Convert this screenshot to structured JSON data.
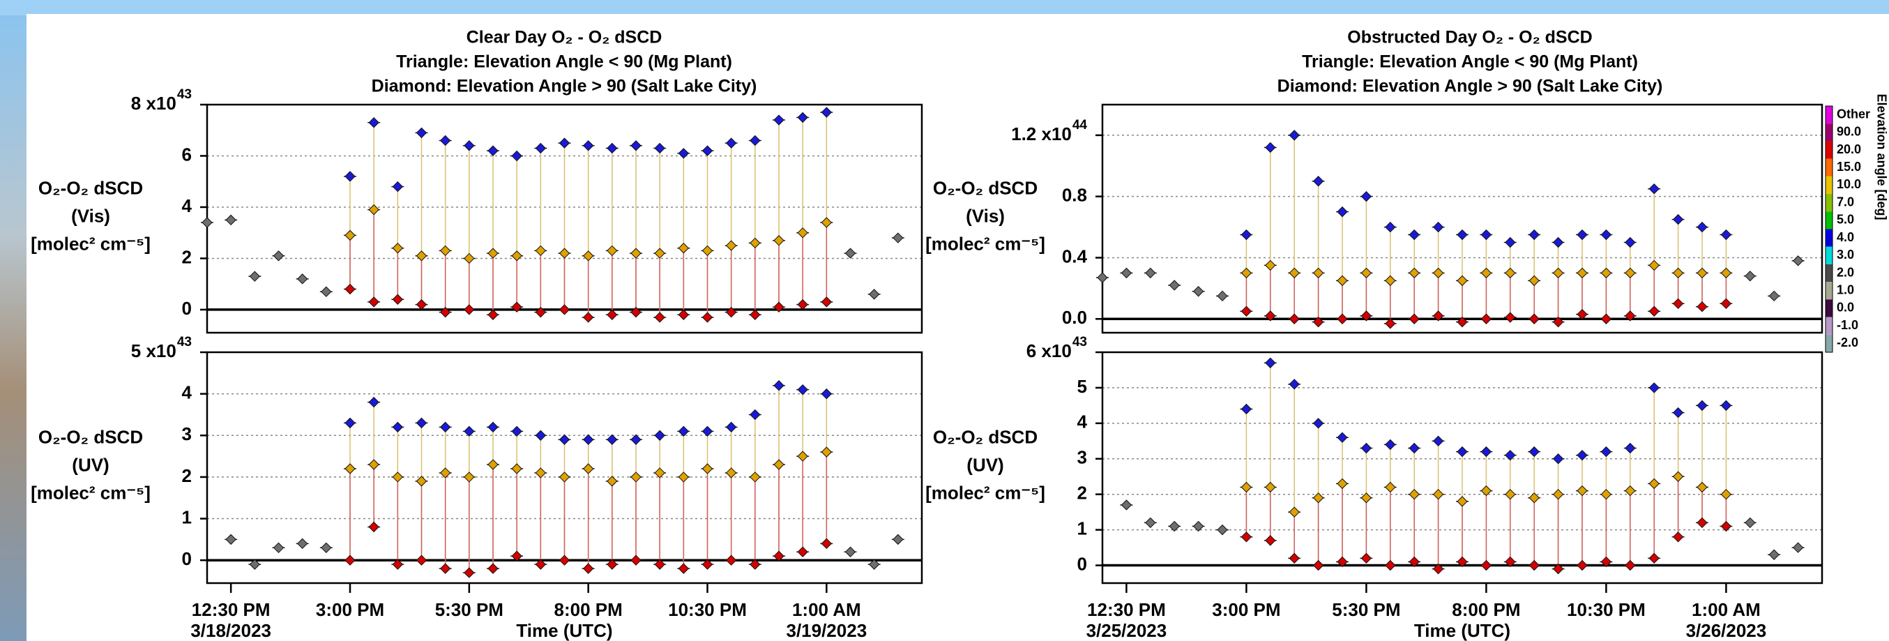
{
  "chart_data": [
    {
      "type": "scatter",
      "title": [
        "Clear Day O₂ - O₂ dSCD",
        "Triangle: Elevation Angle < 90 (Mg Plant)",
        "Diamond: Elevation Angle > 90 (Salt Lake City)"
      ],
      "ylabel": [
        "O₂-O₂ dSCD",
        "(Vis)",
        "[molec² cm⁻⁵]"
      ],
      "xlim": [
        12,
        27
      ],
      "ylim": [
        -0.9,
        8
      ],
      "yticks": [
        0,
        2,
        4,
        6,
        {
          "value": 8,
          "label": "8 x10"
        }
      ],
      "y_exponent": "43",
      "grid": true,
      "x": [
        12,
        12.5,
        13,
        13.5,
        14,
        14.5,
        15,
        15.5,
        16,
        16.5,
        17,
        17.5,
        18,
        18.5,
        19,
        19.5,
        20,
        20.5,
        21,
        21.5,
        22,
        22.5,
        23,
        23.5,
        24,
        24.5,
        25,
        25.5,
        26,
        26.5
      ],
      "series": [
        {
          "color": "#1a1ad6",
          "values": [
            null,
            null,
            null,
            null,
            null,
            null,
            5.2,
            7.3,
            4.8,
            6.9,
            6.6,
            6.4,
            6.2,
            6.0,
            6.3,
            6.5,
            6.4,
            6.3,
            6.4,
            6.3,
            6.1,
            6.2,
            6.5,
            6.6,
            7.4,
            7.5,
            7.7,
            null,
            null,
            null
          ]
        },
        {
          "color": "#e0a000",
          "values": [
            null,
            null,
            null,
            null,
            null,
            null,
            2.9,
            3.9,
            2.4,
            2.1,
            2.3,
            2.0,
            2.2,
            2.1,
            2.3,
            2.2,
            2.1,
            2.3,
            2.2,
            2.2,
            2.4,
            2.3,
            2.5,
            2.6,
            2.7,
            3.0,
            3.4,
            null,
            null,
            null
          ]
        },
        {
          "color": "#d40000",
          "values": [
            null,
            null,
            null,
            null,
            null,
            null,
            0.8,
            0.3,
            0.4,
            0.2,
            -0.1,
            0.0,
            -0.2,
            0.1,
            -0.1,
            0.0,
            -0.3,
            -0.2,
            -0.1,
            -0.3,
            -0.2,
            -0.3,
            -0.1,
            -0.2,
            0.1,
            0.2,
            0.3,
            null,
            null,
            null
          ]
        },
        {
          "color": "#6e6e6e",
          "values": [
            3.4,
            3.5,
            1.3,
            2.1,
            1.2,
            0.7,
            null,
            null,
            null,
            null,
            null,
            null,
            null,
            null,
            null,
            null,
            null,
            null,
            null,
            null,
            null,
            null,
            null,
            null,
            null,
            null,
            null,
            2.2,
            0.6,
            2.8
          ]
        }
      ]
    },
    {
      "type": "scatter",
      "ylabel": [
        "O₂-O₂ dSCD",
        "(UV)",
        "[molec² cm⁻⁵]"
      ],
      "xlim": [
        12,
        27
      ],
      "ylim": [
        -0.55,
        5
      ],
      "yticks": [
        0,
        1,
        2,
        3,
        4,
        {
          "value": 5,
          "label": "5 x10"
        }
      ],
      "y_exponent": "43",
      "grid": true,
      "xticks": [
        {
          "value": 12.5,
          "label": "12:30 PM"
        },
        {
          "value": 15,
          "label": "3:00 PM"
        },
        {
          "value": 17.5,
          "label": "5:30 PM"
        },
        {
          "value": 20,
          "label": "8:00 PM"
        },
        {
          "value": 22.5,
          "label": "10:30 PM"
        },
        {
          "value": 25,
          "label": "1:00 AM"
        }
      ],
      "dates": [
        "3/18/2023",
        "3/19/2023"
      ],
      "xlabel": "Time (UTC)",
      "x": [
        12,
        12.5,
        13,
        13.5,
        14,
        14.5,
        15,
        15.5,
        16,
        16.5,
        17,
        17.5,
        18,
        18.5,
        19,
        19.5,
        20,
        20.5,
        21,
        21.5,
        22,
        22.5,
        23,
        23.5,
        24,
        24.5,
        25,
        25.5,
        26,
        26.5
      ],
      "series": [
        {
          "color": "#1a1ad6",
          "values": [
            null,
            null,
            null,
            null,
            null,
            null,
            3.3,
            3.8,
            3.2,
            3.3,
            3.2,
            3.1,
            3.2,
            3.1,
            3.0,
            2.9,
            2.9,
            2.9,
            2.9,
            3.0,
            3.1,
            3.1,
            3.2,
            3.5,
            4.2,
            4.1,
            4.0,
            null,
            null,
            null
          ]
        },
        {
          "color": "#e0a000",
          "values": [
            null,
            null,
            null,
            null,
            null,
            null,
            2.2,
            2.3,
            2.0,
            1.9,
            2.1,
            2.0,
            2.3,
            2.2,
            2.1,
            2.0,
            2.2,
            1.9,
            2.0,
            2.1,
            2.0,
            2.2,
            2.1,
            2.0,
            2.3,
            2.5,
            2.6,
            null,
            null,
            null
          ]
        },
        {
          "color": "#d40000",
          "values": [
            null,
            null,
            null,
            null,
            null,
            null,
            0.0,
            0.8,
            -0.1,
            0.0,
            -0.2,
            -0.3,
            -0.2,
            0.1,
            -0.1,
            0.0,
            -0.2,
            -0.1,
            0.0,
            -0.1,
            -0.2,
            -0.1,
            0.0,
            -0.1,
            0.1,
            0.2,
            0.4,
            null,
            null,
            null
          ]
        },
        {
          "color": "#6e6e6e",
          "values": [
            null,
            0.5,
            -0.1,
            0.3,
            0.4,
            0.3,
            null,
            null,
            null,
            null,
            null,
            null,
            null,
            null,
            null,
            null,
            null,
            null,
            null,
            null,
            null,
            null,
            null,
            null,
            null,
            null,
            null,
            0.2,
            -0.1,
            0.5
          ]
        }
      ]
    },
    {
      "type": "scatter",
      "title": [
        "Obstructed Day O₂ - O₂ dSCD",
        "Triangle: Elevation Angle < 90 (Mg Plant)",
        "Diamond: Elevation Angle > 90 (Salt Lake City)"
      ],
      "ylabel": [
        "O₂-O₂ dSCD",
        "(Vis)",
        "[molec² cm⁻⁵]"
      ],
      "xlim": [
        12,
        27
      ],
      "ylim": [
        -0.09,
        1.4
      ],
      "yticks": [
        {
          "value": 0,
          "label": "0.0"
        },
        0.4,
        0.8,
        {
          "value": 1.2,
          "label": "1.2 x10"
        }
      ],
      "y_exponent": "44",
      "grid": true,
      "x": [
        12,
        12.5,
        13,
        13.5,
        14,
        14.5,
        15,
        15.5,
        16,
        16.5,
        17,
        17.5,
        18,
        18.5,
        19,
        19.5,
        20,
        20.5,
        21,
        21.5,
        22,
        22.5,
        23,
        23.5,
        24,
        24.5,
        25,
        25.5,
        26,
        26.5
      ],
      "series": [
        {
          "color": "#1a1ad6",
          "values": [
            null,
            null,
            null,
            null,
            null,
            null,
            0.55,
            1.12,
            1.2,
            0.9,
            0.7,
            0.8,
            0.6,
            0.55,
            0.6,
            0.55,
            0.55,
            0.5,
            0.55,
            0.5,
            0.55,
            0.55,
            0.5,
            0.85,
            0.65,
            0.6,
            0.55,
            null,
            null,
            null
          ]
        },
        {
          "color": "#e0a000",
          "values": [
            null,
            null,
            null,
            null,
            null,
            null,
            0.3,
            0.35,
            0.3,
            0.3,
            0.25,
            0.3,
            0.25,
            0.3,
            0.3,
            0.25,
            0.3,
            0.3,
            0.25,
            0.3,
            0.3,
            0.3,
            0.3,
            0.35,
            0.3,
            0.3,
            0.3,
            null,
            null,
            null
          ]
        },
        {
          "color": "#d40000",
          "values": [
            null,
            null,
            null,
            null,
            null,
            null,
            0.05,
            0.02,
            0.0,
            -0.02,
            0.0,
            0.02,
            -0.03,
            0.0,
            0.02,
            -0.02,
            0.0,
            0.01,
            0.0,
            -0.02,
            0.03,
            0.0,
            0.02,
            0.05,
            0.1,
            0.08,
            0.1,
            null,
            null,
            null
          ]
        },
        {
          "color": "#6e6e6e",
          "values": [
            0.27,
            0.3,
            0.3,
            0.22,
            0.18,
            0.15,
            null,
            null,
            null,
            null,
            null,
            null,
            null,
            null,
            null,
            null,
            null,
            null,
            null,
            null,
            null,
            null,
            null,
            null,
            null,
            null,
            null,
            0.28,
            0.15,
            0.38
          ]
        }
      ]
    },
    {
      "type": "scatter",
      "ylabel": [
        "O₂-O₂ dSCD",
        "(UV)",
        "[molec² cm⁻⁵]"
      ],
      "xlim": [
        12,
        27
      ],
      "ylim": [
        -0.5,
        6
      ],
      "yticks": [
        0,
        1,
        2,
        3,
        4,
        5,
        {
          "value": 6,
          "label": "6 x10"
        }
      ],
      "y_exponent": "43",
      "grid": true,
      "xticks": [
        {
          "value": 12.5,
          "label": "12:30 PM"
        },
        {
          "value": 15,
          "label": "3:00 PM"
        },
        {
          "value": 17.5,
          "label": "5:30 PM"
        },
        {
          "value": 20,
          "label": "8:00 PM"
        },
        {
          "value": 22.5,
          "label": "10:30 PM"
        },
        {
          "value": 25,
          "label": "1:00 AM"
        }
      ],
      "dates": [
        "3/25/2023",
        "3/26/2023"
      ],
      "xlabel": "Time (UTC)",
      "x": [
        12,
        12.5,
        13,
        13.5,
        14,
        14.5,
        15,
        15.5,
        16,
        16.5,
        17,
        17.5,
        18,
        18.5,
        19,
        19.5,
        20,
        20.5,
        21,
        21.5,
        22,
        22.5,
        23,
        23.5,
        24,
        24.5,
        25,
        25.5,
        26,
        26.5
      ],
      "series": [
        {
          "color": "#1a1ad6",
          "values": [
            null,
            null,
            null,
            null,
            null,
            null,
            4.4,
            5.7,
            5.1,
            4.0,
            3.6,
            3.3,
            3.4,
            3.3,
            3.5,
            3.2,
            3.2,
            3.1,
            3.2,
            3.0,
            3.1,
            3.2,
            3.3,
            5.0,
            4.3,
            4.5,
            4.5,
            null,
            null,
            null
          ]
        },
        {
          "color": "#e0a000",
          "values": [
            null,
            null,
            null,
            null,
            null,
            null,
            2.2,
            2.2,
            1.5,
            1.9,
            2.3,
            1.9,
            2.2,
            2.0,
            2.0,
            1.8,
            2.1,
            2.0,
            1.9,
            2.0,
            2.1,
            2.0,
            2.1,
            2.3,
            2.5,
            2.2,
            2.0,
            null,
            null,
            null
          ]
        },
        {
          "color": "#d40000",
          "values": [
            null,
            null,
            null,
            null,
            null,
            null,
            0.8,
            0.7,
            0.2,
            0.0,
            0.1,
            0.2,
            0.0,
            0.1,
            -0.1,
            0.1,
            0.0,
            0.1,
            0.0,
            -0.1,
            0.0,
            0.1,
            0.0,
            0.2,
            0.8,
            1.2,
            1.1,
            null,
            null,
            null
          ]
        },
        {
          "color": "#6e6e6e",
          "values": [
            null,
            1.7,
            1.2,
            1.1,
            1.1,
            1.0,
            null,
            null,
            null,
            null,
            null,
            null,
            null,
            null,
            null,
            null,
            null,
            null,
            null,
            null,
            null,
            null,
            null,
            null,
            null,
            null,
            null,
            1.2,
            0.3,
            0.5
          ]
        }
      ]
    }
  ],
  "colorbar": {
    "title": "Elevation angle [deg]",
    "labels": [
      "Other",
      "90.0",
      "20.0",
      "15.0",
      "10.0",
      "7.0",
      "5.0",
      "4.0",
      "3.0",
      "2.0",
      "1.0",
      "0.0",
      "-1.0",
      "-2.0"
    ],
    "colors": [
      "#e000e0",
      "#a0006e",
      "#e00000",
      "#ff6a00",
      "#e8c400",
      "#8ac000",
      "#00c000",
      "#0000e0",
      "#00dcdc",
      "#4a4a4a",
      "#a8a890",
      "#3c0a3c",
      "#b898c8",
      "#88a8a8"
    ]
  }
}
